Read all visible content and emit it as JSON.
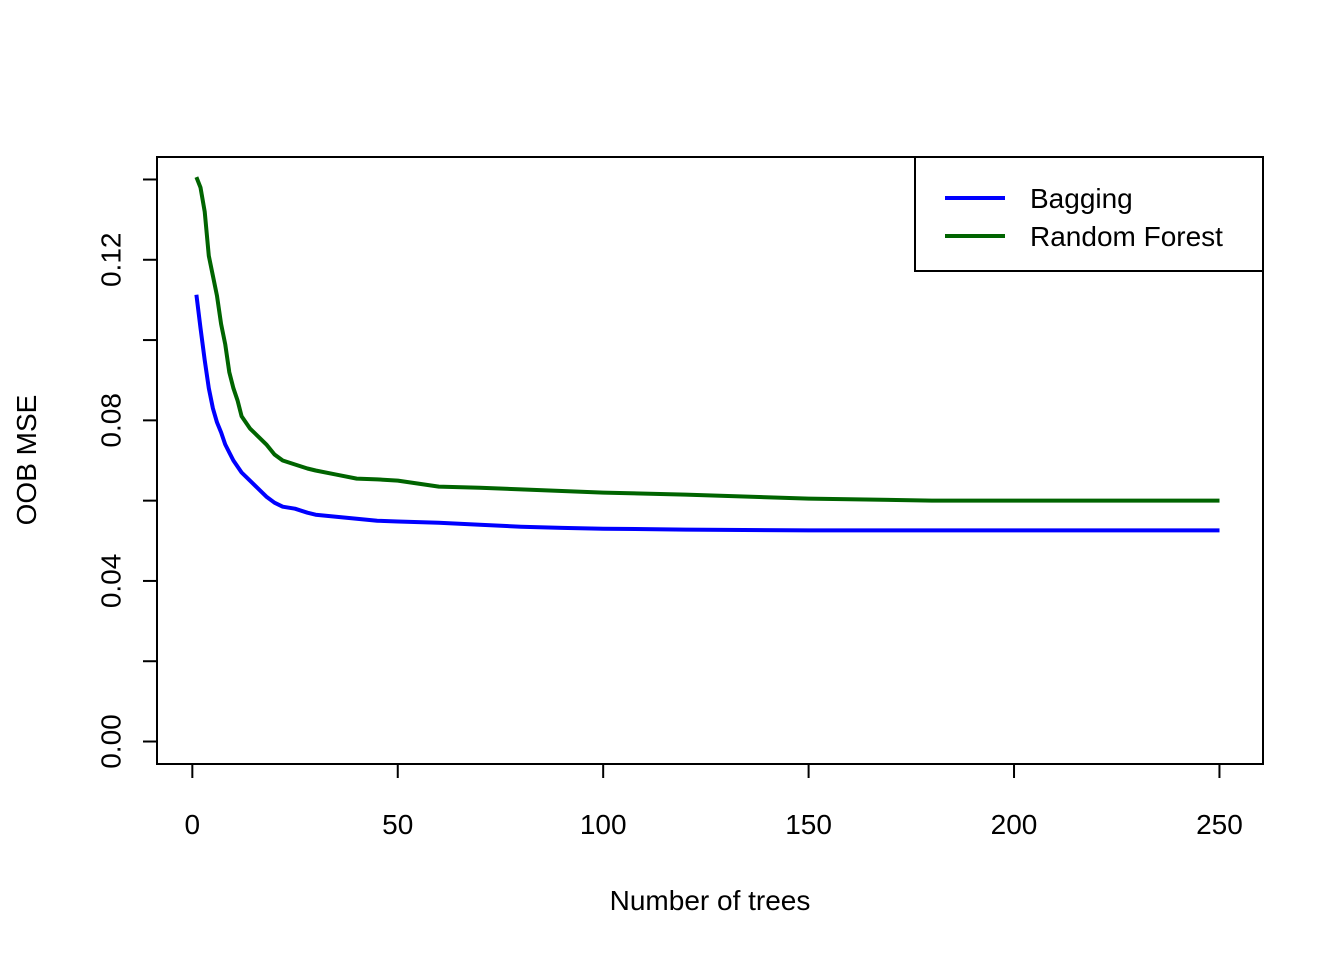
{
  "chart_data": {
    "type": "line",
    "title": "",
    "xlabel": "Number of trees",
    "ylabel": "OOB MSE",
    "xlim": [
      -8.6,
      260.6
    ],
    "ylim": [
      -0.0056,
      0.1456
    ],
    "xticks": [
      0,
      50,
      100,
      150,
      200,
      250
    ],
    "xtick_labels": [
      "0",
      "50",
      "100",
      "150",
      "200",
      "250"
    ],
    "yticks": [
      0.0,
      0.02,
      0.04,
      0.06,
      0.08,
      0.1,
      0.12,
      0.14
    ],
    "ytick_labels": [
      "0.00",
      "",
      "0.04",
      "",
      "0.08",
      "",
      "0.12",
      ""
    ],
    "grid": false,
    "legend_position": "top-right",
    "series": [
      {
        "name": "Bagging",
        "color": "#0000ff",
        "x": [
          1,
          2,
          3,
          4,
          5,
          6,
          7,
          8,
          9,
          10,
          12,
          14,
          16,
          18,
          20,
          22,
          25,
          28,
          30,
          35,
          40,
          45,
          50,
          60,
          70,
          80,
          90,
          100,
          120,
          150,
          200,
          250
        ],
        "values": [
          0.1113,
          0.103,
          0.095,
          0.088,
          0.083,
          0.0795,
          0.077,
          0.074,
          0.072,
          0.07,
          0.067,
          0.065,
          0.063,
          0.061,
          0.0595,
          0.0585,
          0.058,
          0.057,
          0.0565,
          0.056,
          0.0555,
          0.055,
          0.0548,
          0.0545,
          0.054,
          0.0535,
          0.0532,
          0.053,
          0.0528,
          0.0526,
          0.0526,
          0.0526
        ]
      },
      {
        "name": "Random Forest",
        "color": "#006400",
        "x": [
          1,
          2,
          3,
          4,
          5,
          6,
          7,
          8,
          9,
          10,
          11,
          12,
          14,
          16,
          18,
          20,
          22,
          25,
          28,
          30,
          35,
          40,
          45,
          50,
          60,
          70,
          80,
          100,
          120,
          150,
          180,
          200,
          250
        ],
        "values": [
          0.1406,
          0.138,
          0.132,
          0.121,
          0.116,
          0.111,
          0.104,
          0.099,
          0.092,
          0.088,
          0.085,
          0.081,
          0.078,
          0.076,
          0.074,
          0.0715,
          0.07,
          0.069,
          0.068,
          0.0675,
          0.0665,
          0.0655,
          0.0653,
          0.065,
          0.0635,
          0.0632,
          0.0628,
          0.062,
          0.0615,
          0.0605,
          0.06,
          0.06,
          0.06
        ]
      }
    ]
  }
}
